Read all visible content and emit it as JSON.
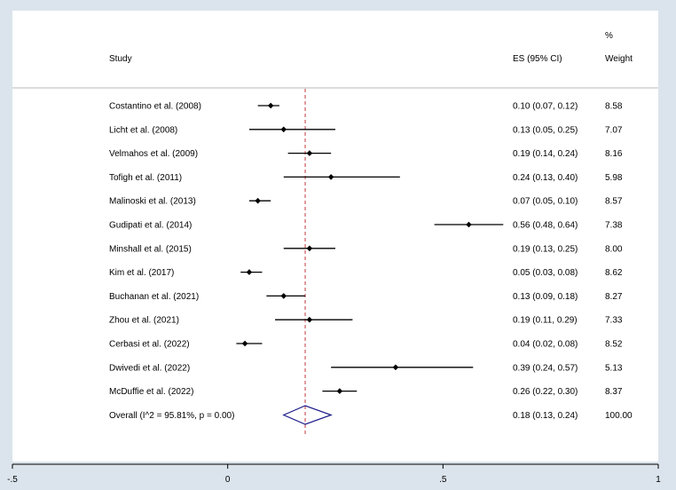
{
  "chart_data": {
    "type": "forest",
    "headers": {
      "study": "Study",
      "es": "ES (95% CI)",
      "weight_top": "%",
      "weight_bottom": "Weight"
    },
    "studies": [
      {
        "name": "Costantino et al. (2008)",
        "es": 0.1,
        "lo": 0.07,
        "hi": 0.12,
        "es_label": "0.10 (0.07, 0.12)",
        "weight": "8.58"
      },
      {
        "name": "Licht et al. (2008)",
        "es": 0.13,
        "lo": 0.05,
        "hi": 0.25,
        "es_label": "0.13 (0.05, 0.25)",
        "weight": "7.07"
      },
      {
        "name": "Velmahos et al. (2009)",
        "es": 0.19,
        "lo": 0.14,
        "hi": 0.24,
        "es_label": "0.19 (0.14, 0.24)",
        "weight": "8.16"
      },
      {
        "name": "Tofigh et al. (2011)",
        "es": 0.24,
        "lo": 0.13,
        "hi": 0.4,
        "es_label": "0.24 (0.13, 0.40)",
        "weight": "5.98"
      },
      {
        "name": "Malinoski et al. (2013)",
        "es": 0.07,
        "lo": 0.05,
        "hi": 0.1,
        "es_label": "0.07 (0.05, 0.10)",
        "weight": "8.57"
      },
      {
        "name": "Gudipati et al. (2014)",
        "es": 0.56,
        "lo": 0.48,
        "hi": 0.64,
        "es_label": "0.56 (0.48, 0.64)",
        "weight": "7.38"
      },
      {
        "name": "Minshall et al. (2015)",
        "es": 0.19,
        "lo": 0.13,
        "hi": 0.25,
        "es_label": "0.19 (0.13, 0.25)",
        "weight": "8.00"
      },
      {
        "name": "Kim et al. (2017)",
        "es": 0.05,
        "lo": 0.03,
        "hi": 0.08,
        "es_label": "0.05 (0.03, 0.08)",
        "weight": "8.62"
      },
      {
        "name": "Buchanan et al. (2021)",
        "es": 0.13,
        "lo": 0.09,
        "hi": 0.18,
        "es_label": "0.13 (0.09, 0.18)",
        "weight": "8.27"
      },
      {
        "name": "Zhou et al. (2021)",
        "es": 0.19,
        "lo": 0.11,
        "hi": 0.29,
        "es_label": "0.19 (0.11, 0.29)",
        "weight": "7.33"
      },
      {
        "name": "Cerbasi et al. (2022)",
        "es": 0.04,
        "lo": 0.02,
        "hi": 0.08,
        "es_label": "0.04 (0.02, 0.08)",
        "weight": "8.52"
      },
      {
        "name": "Dwivedi et al. (2022)",
        "es": 0.39,
        "lo": 0.24,
        "hi": 0.57,
        "es_label": "0.39 (0.24, 0.57)",
        "weight": "5.13"
      },
      {
        "name": "McDuffie et al. (2022)",
        "es": 0.26,
        "lo": 0.22,
        "hi": 0.3,
        "es_label": "0.26 (0.22, 0.30)",
        "weight": "8.37"
      }
    ],
    "overall": {
      "name": "Overall  (I^2 = 95.81%, p = 0.00)",
      "es": 0.18,
      "lo": 0.13,
      "hi": 0.24,
      "es_label": "0.18 (0.13, 0.24)",
      "weight": "100.00"
    },
    "x_axis": {
      "range": [
        -0.5,
        1.0
      ],
      "ticks": [
        -0.5,
        0,
        0.5,
        1
      ],
      "tick_labels": [
        "-.5",
        "0",
        ".5",
        "1"
      ]
    },
    "reference_line_value": 0.18,
    "colors": {
      "point": "#000000",
      "ci_line": "#000000",
      "reference_line": "#c0393b",
      "diamond": "#1a1a8a",
      "background": "#dbe4ec",
      "panel": "#ffffff"
    }
  }
}
